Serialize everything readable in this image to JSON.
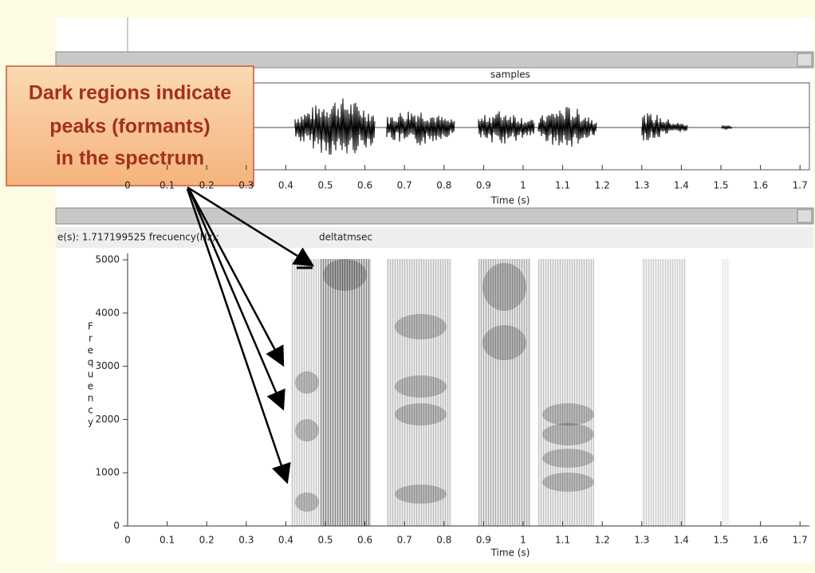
{
  "callout": {
    "lines": [
      "Dark regions indicate",
      "peaks (formants)",
      "in the spectrum"
    ]
  },
  "waveform": {
    "header": "samples",
    "xticks": [
      0,
      0.1,
      0.2,
      0.3,
      0.4,
      0.5,
      0.6,
      0.7,
      0.8,
      0.9,
      1,
      1.1,
      1.2,
      1.3,
      1.4,
      1.5,
      1.6,
      1.7
    ],
    "xlabel": "Time (s)"
  },
  "spectrogram": {
    "header_left": "e(s): 1.717199525 frecuency(Hz):",
    "header_right": "deltatmsec",
    "ylabel": "Frequency",
    "yticks": [
      0,
      1000,
      2000,
      3000,
      4000,
      5000
    ],
    "xticks": [
      0,
      0.1,
      0.2,
      0.3,
      0.4,
      0.5,
      0.6,
      0.7,
      0.8,
      0.9,
      1,
      1.1,
      1.2,
      1.3,
      1.4,
      1.5,
      1.6,
      1.7
    ],
    "xlabel": "Time (s)"
  }
}
